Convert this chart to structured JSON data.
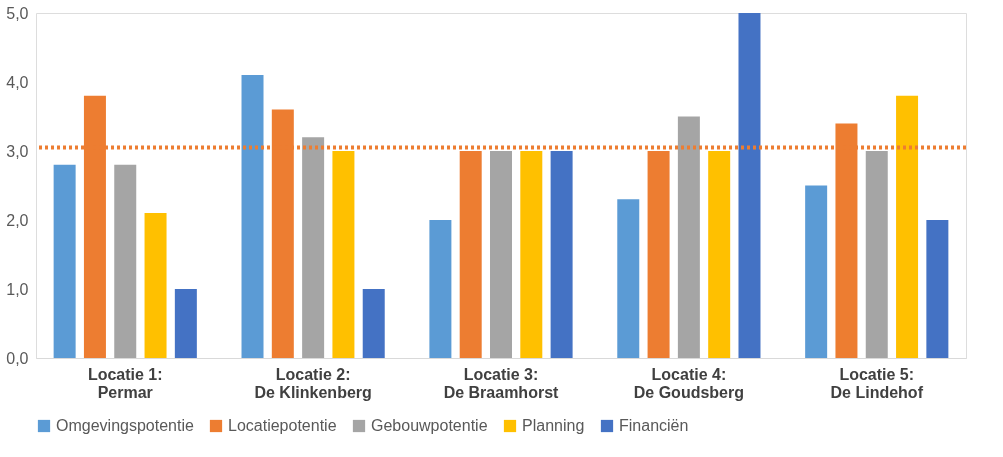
{
  "chart_data": {
    "type": "bar",
    "categories": [
      "Locatie 1:\nPermar",
      "Locatie 2:\nDe Klinkenberg",
      "Locatie 3:\nDe Braamhorst",
      "Locatie 4:\nDe Goudsberg",
      "Locatie 5:\nDe Lindehof"
    ],
    "series": [
      {
        "name": "Omgevingspotentie",
        "color": "#5b9bd5",
        "values": [
          2.8,
          4.1,
          2.0,
          2.3,
          2.5
        ]
      },
      {
        "name": "Locatiepotentie",
        "color": "#ed7d31",
        "values": [
          3.8,
          3.6,
          3.0,
          3.0,
          3.4
        ]
      },
      {
        "name": "Gebouwpotentie",
        "color": "#a5a5a5",
        "values": [
          2.8,
          3.2,
          3.0,
          3.5,
          3.0
        ]
      },
      {
        "name": "Planning",
        "color": "#ffc000",
        "values": [
          2.1,
          3.0,
          3.0,
          3.0,
          3.8
        ]
      },
      {
        "name": "Financiën",
        "color": "#4472c4",
        "values": [
          1.0,
          1.0,
          3.0,
          5.0,
          2.0
        ]
      }
    ],
    "ylim": [
      0,
      5
    ],
    "yticks": [
      {
        "value": 0,
        "label": "0,0"
      },
      {
        "value": 1,
        "label": "1,0"
      },
      {
        "value": 2,
        "label": "2,0"
      },
      {
        "value": 3,
        "label": "3,0"
      },
      {
        "value": 4,
        "label": "4,0"
      },
      {
        "value": 5,
        "label": "5,0"
      }
    ],
    "ref_lines": [
      {
        "axis": "y",
        "value": 3.05,
        "color": "#ed7d31",
        "line_style": "dotted"
      }
    ],
    "grid": false,
    "legend": "bottom"
  }
}
